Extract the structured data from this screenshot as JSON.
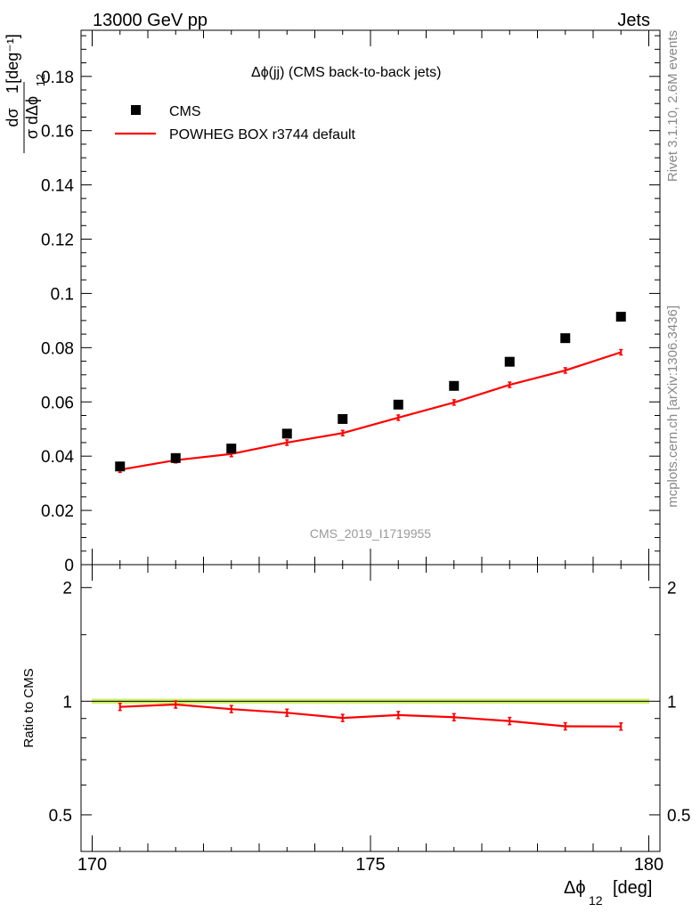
{
  "header": {
    "energy_label": "13000 GeV pp",
    "category_label": "Jets"
  },
  "side_labels": {
    "rivet": "Rivet 3.1.10,  2.6M events",
    "mcplots": "mcplots.cern.ch [arXiv:1306.3436]"
  },
  "chart_data": [
    {
      "type": "scatter",
      "title": "Δϕ(jj) (CMS back-to-back jets)",
      "watermark": "CMS_2019_I1719955",
      "ylabel": "1/σ dσ/dΔϕ12 [deg⁻¹]",
      "x_edges": [
        170,
        171,
        172,
        173,
        174,
        175,
        176,
        177,
        178,
        179,
        180
      ],
      "x": [
        170.5,
        171.5,
        172.5,
        173.5,
        174.5,
        175.5,
        176.5,
        177.5,
        178.5,
        179.5
      ],
      "xlim": [
        169.8,
        180.2
      ],
      "ylim": [
        0,
        0.197
      ],
      "yticks": [
        0,
        0.02,
        0.04,
        0.06,
        0.08,
        0.1,
        0.12,
        0.14,
        0.16,
        0.18
      ],
      "ytick_labels": [
        "0",
        "0.02",
        "0.04",
        "0.06",
        "0.08",
        "0.1",
        "0.12",
        "0.14",
        "0.16",
        "0.18"
      ],
      "legend_position": "top-left",
      "series": [
        {
          "name": "CMS",
          "style": "markers",
          "color": "#000000",
          "values": [
            0.0362,
            0.0393,
            0.0428,
            0.0483,
            0.0537,
            0.059,
            0.0659,
            0.0748,
            0.0835,
            0.0914
          ]
        },
        {
          "name": "POWHEG BOX r3744 default",
          "style": "line",
          "color": "#ff0000",
          "values": [
            0.035,
            0.0385,
            0.0408,
            0.045,
            0.0485,
            0.0542,
            0.0598,
            0.0663,
            0.0716,
            0.0783
          ]
        }
      ]
    },
    {
      "type": "line",
      "ylabel": "Ratio to CMS",
      "xlabel": "Δϕ12 [deg]",
      "xlim": [
        169.8,
        180.2
      ],
      "xticks": [
        170,
        175,
        180
      ],
      "xtick_labels": [
        "170",
        "175",
        "180"
      ],
      "ylim": [
        0.4,
        2.3
      ],
      "yscale": "log",
      "yticks": [
        0.5,
        1,
        2
      ],
      "ytick_labels": [
        "0.5",
        "1",
        "2"
      ],
      "band": {
        "low": 0.985,
        "high": 1.015,
        "color": "#ccee66"
      },
      "series": [
        {
          "name": "POWHEG BOX r3744 default",
          "color": "#ff0000",
          "values": [
            0.966,
            0.98,
            0.953,
            0.932,
            0.903,
            0.919,
            0.907,
            0.886,
            0.858,
            0.857
          ]
        }
      ]
    }
  ]
}
